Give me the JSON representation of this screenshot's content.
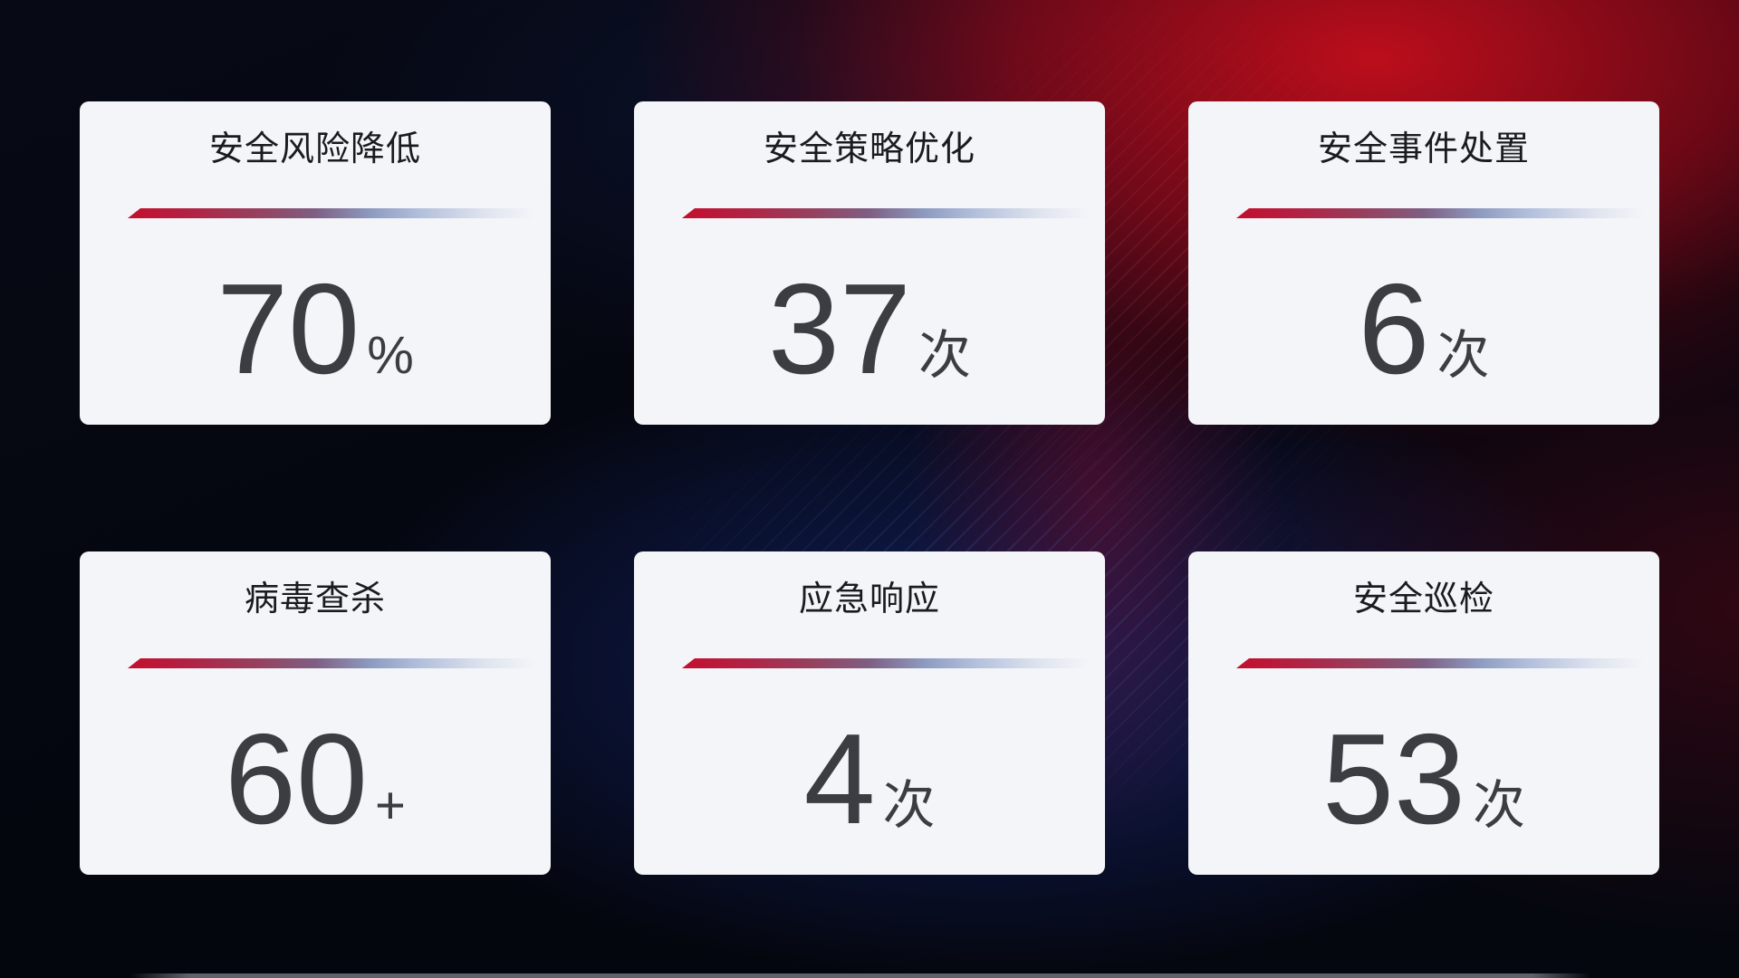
{
  "cards": [
    {
      "title": "安全风险降低",
      "value": "70",
      "unit": "%"
    },
    {
      "title": "安全策略优化",
      "value": "37",
      "unit": "次"
    },
    {
      "title": "安全事件处置",
      "value": "6",
      "unit": "次"
    },
    {
      "title": "病毒查杀",
      "value": "60",
      "unit": "+"
    },
    {
      "title": "应急响应",
      "value": "4",
      "unit": "次"
    },
    {
      "title": "安全巡检",
      "value": "53",
      "unit": "次"
    }
  ],
  "colors": {
    "card_background": "#f4f5f9",
    "title_text": "#1a1b1e",
    "value_text": "#3c3d42",
    "divider_start_red": "#c40e2e",
    "divider_end_blue": "#b3c0dc",
    "background_red_glow": "#8e0918",
    "background_blue_glow": "#1a3088",
    "background_base": "#04060e"
  }
}
